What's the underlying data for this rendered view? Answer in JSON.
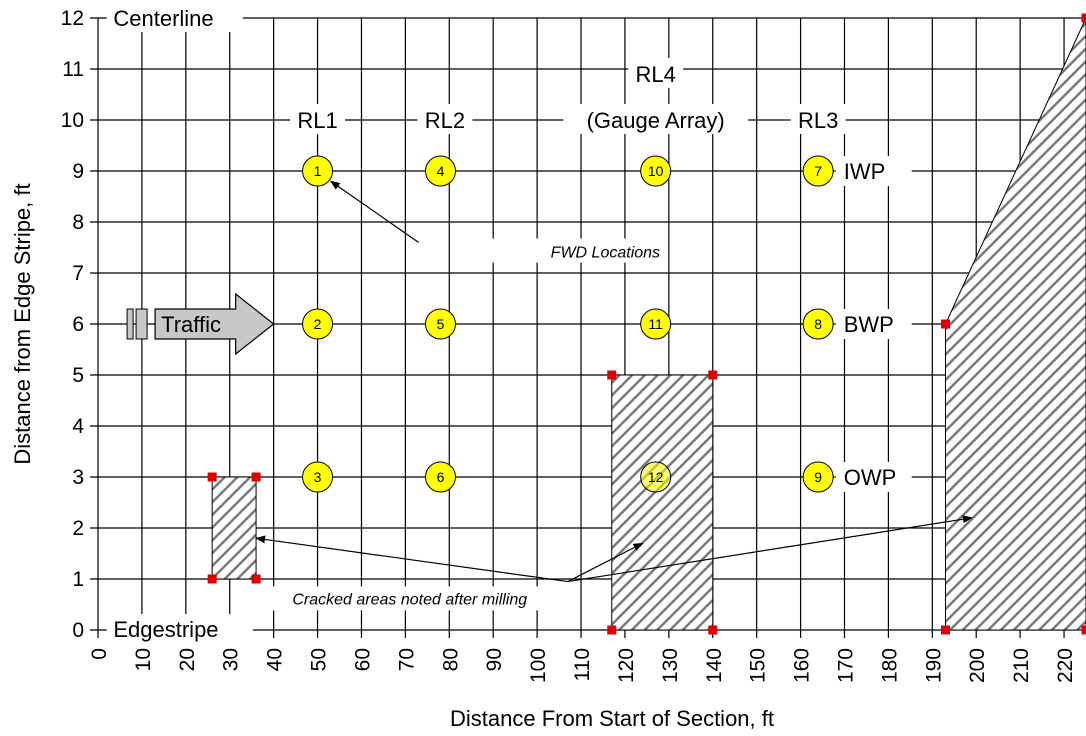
{
  "chart_data": {
    "type": "scatter",
    "title": "",
    "xlabel": "Distance From Start of Section, ft",
    "ylabel": "Distance from Edge Stripe, ft",
    "xlim": [
      0,
      225
    ],
    "ylim": [
      0,
      12
    ],
    "xticks": [
      "0",
      "10",
      "20",
      "30",
      "40",
      "50",
      "60",
      "70",
      "80",
      "90",
      "100",
      "110",
      "120",
      "130",
      "140",
      "150",
      "160",
      "170",
      "180",
      "190",
      "200",
      "210",
      "220"
    ],
    "yticks": [
      "0",
      "1",
      "2",
      "3",
      "4",
      "5",
      "6",
      "7",
      "8",
      "9",
      "10",
      "11",
      "12"
    ],
    "grid": true,
    "lane_labels": {
      "centerline": "Centerline",
      "edgestripe": "Edgestripe",
      "traffic": "Traffic",
      "wheelpaths": [
        {
          "label": "IWP",
          "y": 9
        },
        {
          "label": "BWP",
          "y": 6
        },
        {
          "label": "OWP",
          "y": 3
        }
      ]
    },
    "rl_labels": [
      {
        "label": "RL1",
        "x": 50,
        "y": 10
      },
      {
        "label": "RL2",
        "x": 79,
        "y": 10
      },
      {
        "label": "RL4",
        "x": 127,
        "y": 10.9
      },
      {
        "label": "(Gauge Array)",
        "x": 127,
        "y": 10
      },
      {
        "label": "RL3",
        "x": 164,
        "y": 10
      }
    ],
    "fwd_points": [
      {
        "id": "1",
        "x": 50,
        "y": 9
      },
      {
        "id": "2",
        "x": 50,
        "y": 6
      },
      {
        "id": "3",
        "x": 50,
        "y": 3
      },
      {
        "id": "4",
        "x": 78,
        "y": 9
      },
      {
        "id": "5",
        "x": 78,
        "y": 6
      },
      {
        "id": "6",
        "x": 78,
        "y": 3
      },
      {
        "id": "7",
        "x": 164,
        "y": 9
      },
      {
        "id": "8",
        "x": 164,
        "y": 6
      },
      {
        "id": "9",
        "x": 164,
        "y": 3
      },
      {
        "id": "10",
        "x": 127,
        "y": 9
      },
      {
        "id": "11",
        "x": 127,
        "y": 6
      },
      {
        "id": "12",
        "x": 127,
        "y": 3
      }
    ],
    "cracked_areas": [
      {
        "name": "area-1",
        "x0": 26,
        "x1": 36,
        "y0": 1,
        "y1": 3
      },
      {
        "name": "area-2",
        "x0": 117,
        "x1": 140,
        "y0": 0,
        "y1": 5
      },
      {
        "name": "area-3",
        "polygon": [
          [
            193,
            0
          ],
          [
            193,
            6
          ],
          [
            225,
            12
          ],
          [
            225,
            0
          ]
        ]
      }
    ],
    "annotations": {
      "fwd_locations": "FWD Locations",
      "cracked": "Cracked areas noted after milling"
    },
    "colors": {
      "fwd_fill": "#ffff00",
      "marker": "#e00000",
      "hatch": "#808080",
      "grid": "#000000"
    }
  }
}
